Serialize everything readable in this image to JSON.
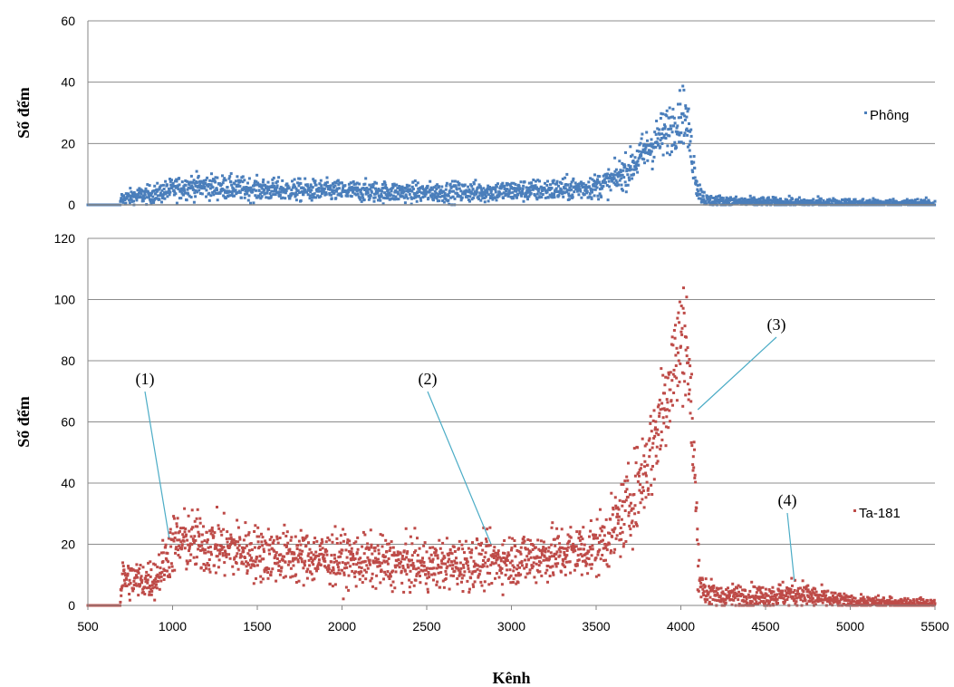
{
  "chart_data": [
    {
      "type": "scatter",
      "panel": "top",
      "ylabel": "Số đếm",
      "xlim": [
        500,
        5500
      ],
      "ylim": [
        0,
        60
      ],
      "yticks": [
        "0",
        "20",
        "40",
        "60"
      ],
      "grid": true,
      "legend": "right",
      "series": [
        {
          "name": "Phông",
          "color": "#4a7ebb",
          "x": [
            500,
            690,
            700,
            800,
            900,
            1000,
            1100,
            1200,
            1500,
            2000,
            2500,
            3000,
            3300,
            3500,
            3600,
            3700,
            3800,
            3900,
            3950,
            4000,
            4020,
            4050,
            4080,
            4100,
            4150,
            4300,
            5000,
            5500
          ],
          "y": [
            0,
            0,
            2,
            3,
            3.5,
            5,
            6,
            6,
            5,
            4.5,
            4,
            4.5,
            5,
            6,
            8,
            12,
            18,
            23,
            26,
            29,
            30,
            22,
            12,
            5,
            1.5,
            1,
            0.6,
            0.4
          ]
        }
      ]
    },
    {
      "type": "scatter",
      "panel": "bottom",
      "xlabel": "Kênh",
      "ylabel": "Số đếm",
      "xlim": [
        500,
        5500
      ],
      "ylim": [
        0,
        120
      ],
      "xticks": [
        "500",
        "1000",
        "1500",
        "2000",
        "2500",
        "3000",
        "3500",
        "4000",
        "4500",
        "5000",
        "5500"
      ],
      "yticks": [
        "0",
        "20",
        "40",
        "60",
        "80",
        "100",
        "120"
      ],
      "grid": true,
      "legend": "right",
      "series": [
        {
          "name": "Ta-181",
          "color": "#be4b48",
          "x": [
            500,
            690,
            700,
            800,
            900,
            950,
            1000,
            1100,
            1200,
            1500,
            2000,
            2500,
            2800,
            3000,
            3300,
            3500,
            3600,
            3700,
            3800,
            3850,
            3900,
            3950,
            4000,
            4030,
            4050,
            4080,
            4100,
            4120,
            4200,
            4500,
            4700,
            4800,
            5000,
            5500
          ],
          "y": [
            0,
            0,
            9,
            8,
            9,
            14,
            20,
            21,
            20,
            17,
            15,
            13,
            14,
            15,
            17,
            19,
            24,
            33,
            46,
            55,
            66,
            77,
            86,
            90,
            72,
            45,
            18,
            6,
            3,
            3,
            4,
            2.5,
            1,
            0.5
          ]
        }
      ],
      "annotations": [
        {
          "label": "(1)",
          "x": 980,
          "y": 22
        },
        {
          "label": "(2)",
          "x": 2880,
          "y": 20
        },
        {
          "label": "(3)",
          "x": 4100,
          "y": 64
        },
        {
          "label": "(4)",
          "x": 4670,
          "y": 8
        }
      ]
    }
  ]
}
